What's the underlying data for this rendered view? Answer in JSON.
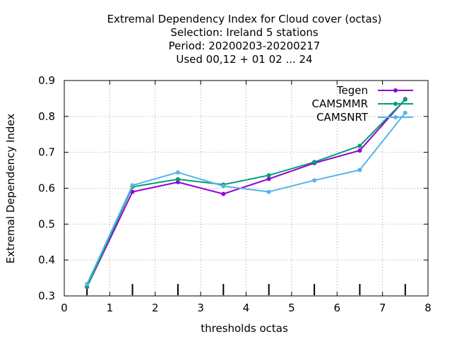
{
  "chart_data": {
    "type": "line",
    "title_lines": [
      "Extremal Dependency Index  for Cloud cover (octas)",
      "Selection: Ireland      5 stations",
      "Period: 20200203-20200217",
      "Used  00,12  + 01 02 ... 24"
    ],
    "xlabel": "thresholds octas",
    "ylabel": "Extremal Dependency Index",
    "xlim": [
      0,
      8
    ],
    "ylim": [
      0.3,
      0.9
    ],
    "xticks": [
      0,
      1,
      2,
      3,
      4,
      5,
      6,
      7,
      8
    ],
    "yticks": [
      0.3,
      0.4,
      0.5,
      0.6,
      0.7,
      0.8,
      0.9
    ],
    "grid": true,
    "legend_position": "top-right",
    "threshold_marks": [
      0.5,
      1.5,
      2.5,
      3.5,
      4.5,
      5.5,
      6.5,
      7.5
    ],
    "x": [
      0.5,
      1.5,
      2.5,
      3.5,
      4.5,
      5.5,
      6.5,
      7.5
    ],
    "series": [
      {
        "name": "Tegen",
        "color": "#9400d3",
        "values": [
          0.325,
          0.59,
          0.617,
          0.584,
          0.626,
          0.67,
          0.705,
          0.848
        ]
      },
      {
        "name": "CAMSMMR",
        "color": "#009e73",
        "values": [
          0.325,
          0.604,
          0.625,
          0.61,
          0.636,
          0.673,
          0.718,
          0.847
        ]
      },
      {
        "name": "CAMSNRT",
        "color": "#56b4e9",
        "values": [
          0.333,
          0.608,
          0.644,
          0.606,
          0.59,
          0.622,
          0.651,
          0.81
        ]
      }
    ]
  }
}
